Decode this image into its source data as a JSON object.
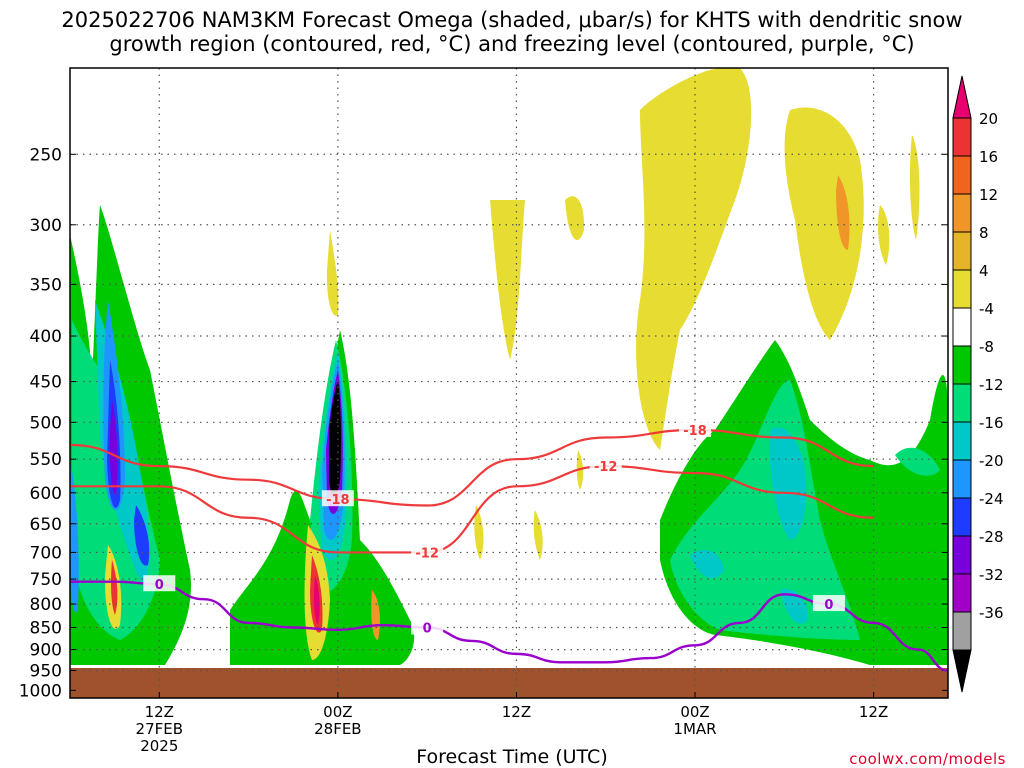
{
  "title": {
    "line1": "2025022706 NAM3KM Forecast Omega (shaded, μbar/s) for KHTS with dendritic snow",
    "line2": "growth region (contoured, red, °C) and freezing level (contoured, purple, °C)"
  },
  "credit": "coolwx.com/models",
  "chart_data": {
    "type": "heatmap",
    "title": "2025022706 NAM3KM Forecast Omega (shaded, μbar/s) for KHTS with dendritic snow growth region (contoured, red, °C) and freezing level (contoured, purple, °C)",
    "xlabel": "Forecast Time (UTC)",
    "ylabel": "",
    "y_axis": {
      "ticks": [
        250,
        300,
        350,
        400,
        450,
        500,
        550,
        600,
        650,
        700,
        750,
        800,
        850,
        900,
        950,
        1000
      ],
      "ylim": [
        1020,
        200
      ],
      "scale": "log-pressure"
    },
    "x_axis": {
      "xlim": [
        "2025-02-27T06Z",
        "2025-03-01T17Z"
      ],
      "ticks": [
        {
          "x": "2025-02-27T12Z",
          "label": "12Z",
          "sub1": "27FEB",
          "sub2": "2025"
        },
        {
          "x": "2025-02-28T00Z",
          "label": "00Z",
          "sub1": "28FEB",
          "sub2": ""
        },
        {
          "x": "2025-02-28T12Z",
          "label": "12Z",
          "sub1": "",
          "sub2": ""
        },
        {
          "x": "2025-03-01T00Z",
          "label": "00Z",
          "sub1": "1MAR",
          "sub2": ""
        },
        {
          "x": "2025-03-01T12Z",
          "label": "12Z",
          "sub1": "",
          "sub2": ""
        }
      ]
    },
    "grid": true,
    "colorbar": {
      "labels": [
        "20",
        "16",
        "12",
        "8",
        "4",
        "-4",
        "-8",
        "-12",
        "-16",
        "-20",
        "-24",
        "-28",
        "-32",
        "-36"
      ],
      "colors": [
        "#e8006e",
        "#ec3232",
        "#f0641e",
        "#f09628",
        "#e6b428",
        "#e6dc32",
        "#ffffff",
        "#00c800",
        "#00dc78",
        "#00c8c8",
        "#1e96ff",
        "#1e3cff",
        "#7800dc",
        "#a000c8",
        "#a0a0a0",
        "#000000"
      ]
    },
    "contours": {
      "dgz_red": [
        {
          "label": "-18",
          "times_h": [
            0,
            6,
            12,
            18,
            24,
            30,
            36,
            42,
            48,
            54
          ],
          "pressure": [
            530,
            560,
            580,
            610,
            620,
            550,
            520,
            510,
            520,
            560
          ]
        },
        {
          "label": "-12",
          "times_h": [
            0,
            6,
            12,
            18,
            24,
            30,
            36,
            42,
            48,
            54
          ],
          "pressure": [
            590,
            590,
            640,
            700,
            700,
            590,
            560,
            570,
            600,
            640
          ]
        }
      ],
      "freezing_level_purple": {
        "label": "0",
        "times_h": [
          0,
          3,
          6,
          9,
          12,
          15,
          18,
          21,
          24,
          27,
          30,
          33,
          36,
          39,
          42,
          45,
          48,
          51,
          54,
          57,
          59
        ],
        "pressure": [
          755,
          755,
          760,
          790,
          840,
          850,
          855,
          845,
          850,
          880,
          910,
          930,
          930,
          920,
          890,
          840,
          780,
          800,
          840,
          900,
          950
        ]
      }
    },
    "omega_features": [
      {
        "time_h": 7,
        "p_top": 450,
        "p_bottom": 660,
        "min_value": -32,
        "max_value": 20
      },
      {
        "time_h": 18,
        "p_top": 440,
        "p_bottom": 760,
        "min_value": -36,
        "max_value": 20
      },
      {
        "time_h": 45,
        "p_top": 200,
        "p_bottom": 560,
        "min_value": 4,
        "max_value": 12
      },
      {
        "time_h": 48,
        "p_top": 380,
        "p_bottom": 930,
        "min_value": -16,
        "max_value": 4
      }
    ]
  }
}
